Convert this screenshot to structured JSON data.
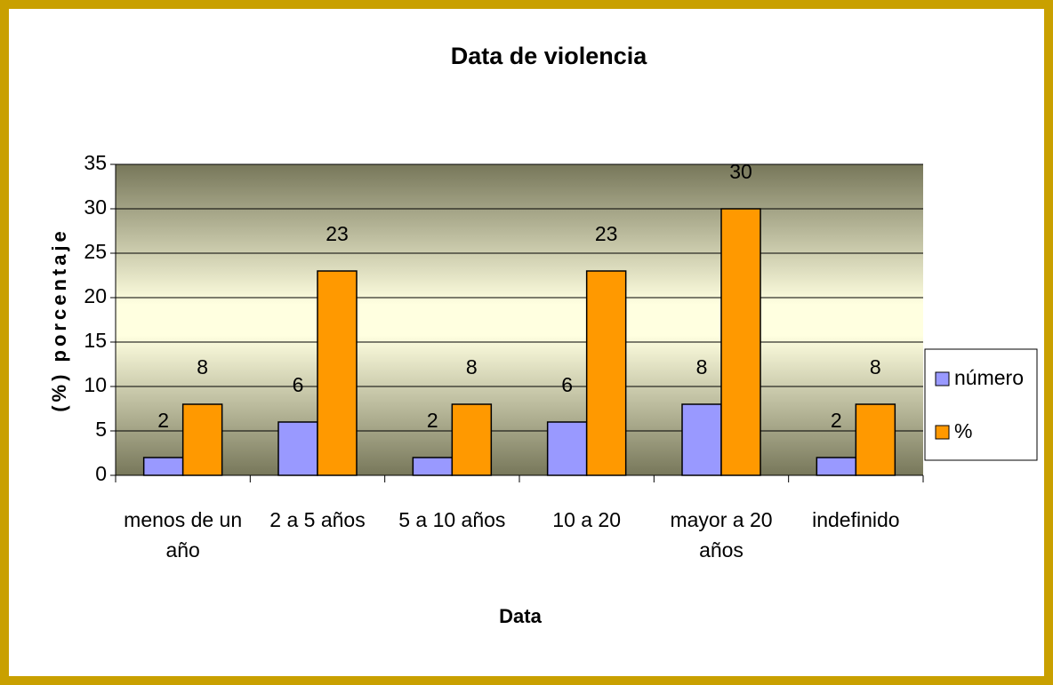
{
  "chart_data": {
    "type": "bar",
    "title": "Data de violencia",
    "x_label": "Data",
    "y_label": "(%) porcentaje",
    "categories": [
      "menos de un año",
      "2 a 5 años",
      "5 a 10 años",
      "10 a 20",
      "mayor a 20 años",
      "indefinido"
    ],
    "series": [
      {
        "name": "número",
        "color": "#9999ff",
        "values": [
          2,
          6,
          2,
          6,
          8,
          2
        ]
      },
      {
        "name": "%",
        "color": "#ff9900",
        "values": [
          8,
          23,
          8,
          23,
          30,
          8
        ]
      }
    ],
    "ylim": [
      0,
      35
    ],
    "yticks": [
      0,
      5,
      10,
      15,
      20,
      25,
      30,
      35
    ],
    "grid": true,
    "legend": "right"
  }
}
